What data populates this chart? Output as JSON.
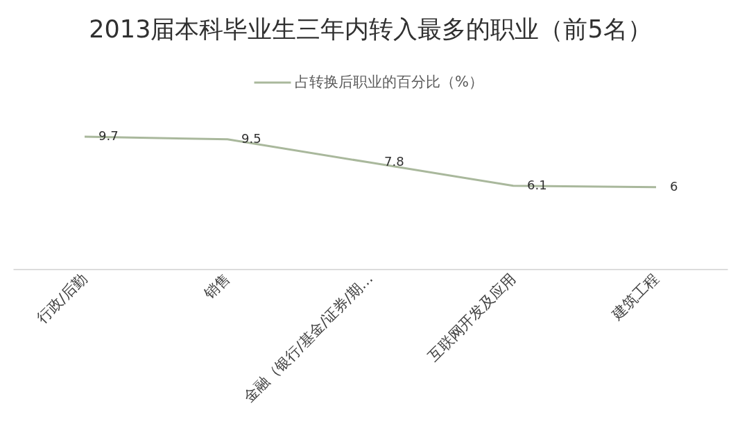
{
  "chart_data": {
    "type": "line",
    "title": "2013届本科毕业生三年内转入最多的职业（前5名）",
    "categories": [
      "行政/后勤",
      "销售",
      "金融（银行/基金/证券/期…",
      "互联网开发及应用",
      "建筑工程"
    ],
    "series": [
      {
        "name": "占转换后职业的百分比（%）",
        "color": "#a9b89c",
        "values": [
          9.7,
          9.5,
          7.8,
          6.1,
          6
        ]
      }
    ],
    "tick_labels": "x",
    "data_labels": true,
    "legend": "top"
  }
}
